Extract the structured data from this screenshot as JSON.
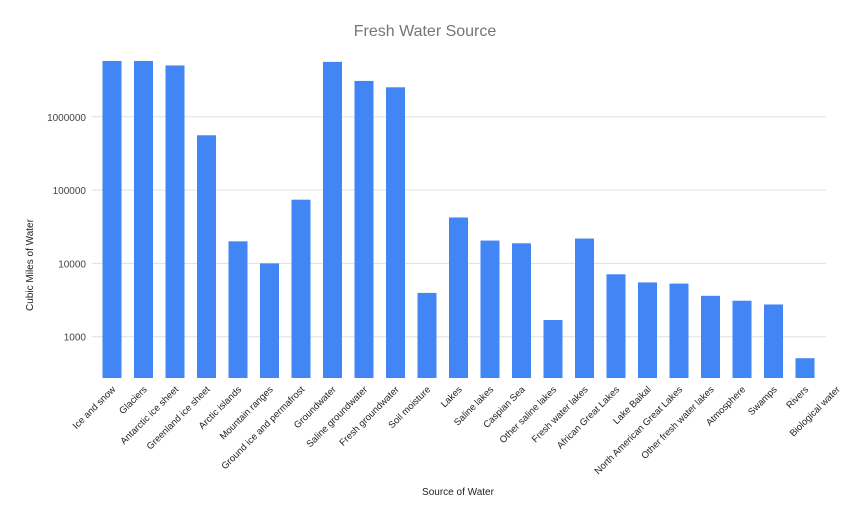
{
  "chart_data": {
    "type": "bar",
    "title": "Fresh Water Source",
    "xlabel": "Source of Water",
    "ylabel": "Cubic Miles of Water",
    "yscale": "log",
    "ylim": [
      275,
      10000000
    ],
    "yticks": [
      1000,
      10000,
      100000,
      1000000
    ],
    "ytick_labels": [
      "1000",
      "10000",
      "100000",
      "1000000"
    ],
    "grid": true,
    "legend": "none",
    "bar_color": "#4285f4",
    "categories": [
      "Ice and snow",
      "Glaciers",
      "Antarctic ice sheet",
      "Greenland ice sheet",
      "Arctic islands",
      "Mountain ranges",
      "Ground ice and permafrost",
      "Groundwater",
      "Saline groundwater",
      "Fresh groundwater",
      "Soil moisture",
      "Lakes",
      "Saline lakes",
      "Caspian Sea",
      "Other saline lakes",
      "Fresh water lakes",
      "African Great Lakes",
      "Lake Baikal",
      "North American Great Lakes",
      "Other fresh water lakes",
      "Atmosphere",
      "Swamps",
      "Rivers",
      "Biological water"
    ],
    "values": [
      5773000,
      5773000,
      5018000,
      560000,
      20000,
      10000,
      74000,
      5614000,
      3088000,
      2526000,
      3959,
      42320,
      20490,
      18800,
      1690,
      21830,
      7100,
      5500,
      5300,
      3613,
      3095,
      2752,
      509,
      269
    ]
  }
}
